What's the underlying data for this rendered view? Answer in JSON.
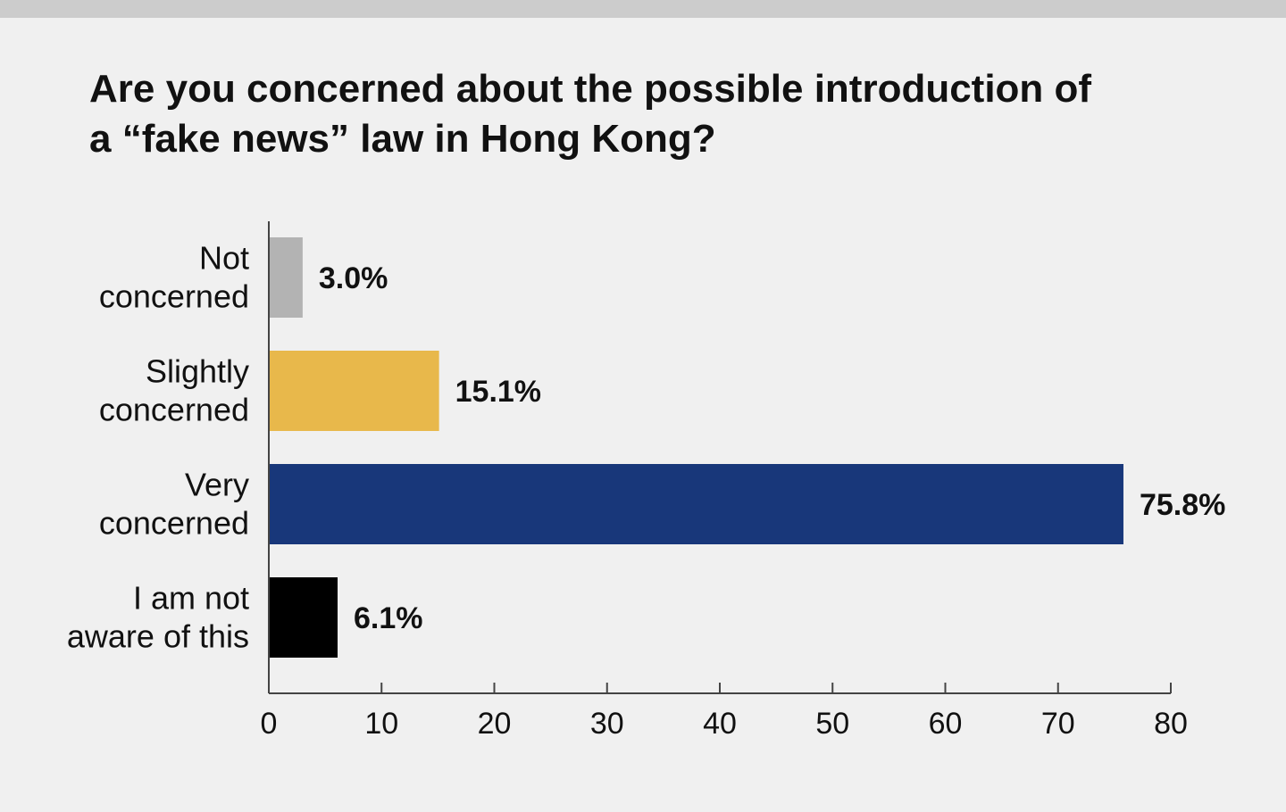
{
  "chart_data": {
    "type": "bar",
    "orientation": "horizontal",
    "title": [
      "Are you concerned about the possible introduction of",
      "a “fake news” law in Hong Kong?"
    ],
    "categories": [
      [
        "Not",
        "concerned"
      ],
      [
        "Slightly",
        "concerned"
      ],
      [
        "Very",
        "concerned"
      ],
      [
        "I am not",
        "aware of this"
      ]
    ],
    "values": [
      3.0,
      15.1,
      75.8,
      6.1
    ],
    "value_labels": [
      "3.0%",
      "15.1%",
      "75.8%",
      "6.1%"
    ],
    "colors": [
      "#b3b3b3",
      "#e8b84b",
      "#18377a",
      "#000000"
    ],
    "xlim": [
      0,
      80
    ],
    "xticks": [
      0,
      10,
      20,
      30,
      40,
      50,
      60,
      70,
      80
    ],
    "grid": false,
    "legend": "none"
  }
}
